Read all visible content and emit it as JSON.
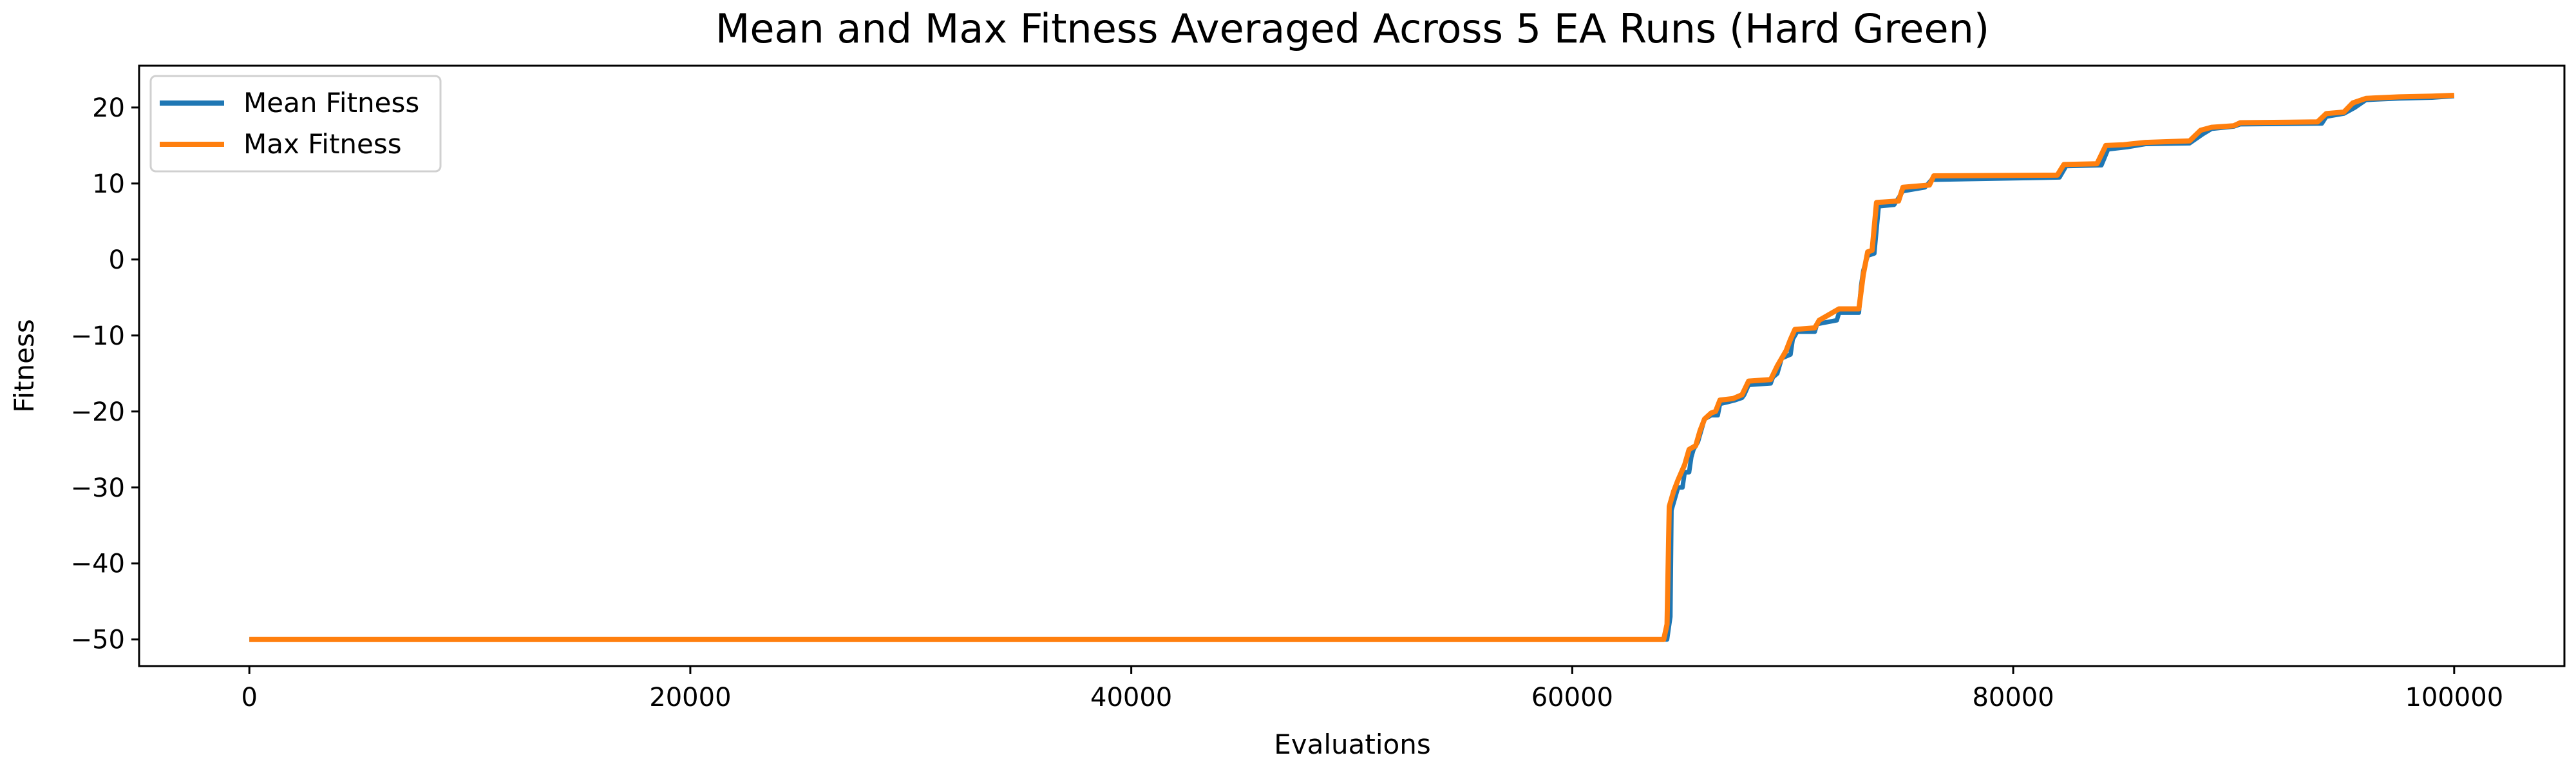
{
  "chart_data": {
    "type": "line",
    "title": "Mean and Max Fitness Averaged Across 5 EA Runs (Hard Green)",
    "xlabel": "Evaluations",
    "ylabel": "Fitness",
    "xlim": [
      -5000,
      105000
    ],
    "ylim": [
      -53.5,
      25.5
    ],
    "xticks": [
      0,
      20000,
      40000,
      60000,
      80000,
      100000
    ],
    "xtick_labels": [
      "0",
      "20000",
      "40000",
      "60000",
      "80000",
      "100000"
    ],
    "yticks": [
      -50,
      -40,
      -30,
      -20,
      -10,
      0,
      10,
      20
    ],
    "ytick_labels": [
      "−50",
      "−40",
      "−30",
      "−20",
      "−10",
      "0",
      "10",
      "20"
    ],
    "grid": false,
    "legend_position": "top-left",
    "series": [
      {
        "name": "Mean Fitness",
        "color": "#1f77b4",
        "points": [
          [
            0,
            -50
          ],
          [
            64300,
            -50
          ],
          [
            64450,
            -47
          ],
          [
            64500,
            -33
          ],
          [
            64700,
            -31
          ],
          [
            64800,
            -30
          ],
          [
            65000,
            -30
          ],
          [
            65100,
            -28
          ],
          [
            65300,
            -28
          ],
          [
            65400,
            -26
          ],
          [
            65500,
            -25
          ],
          [
            65700,
            -24
          ],
          [
            65800,
            -23
          ],
          [
            66000,
            -21
          ],
          [
            66300,
            -20.5
          ],
          [
            66600,
            -20.5
          ],
          [
            66700,
            -19
          ],
          [
            67000,
            -18.8
          ],
          [
            67400,
            -18.5
          ],
          [
            67700,
            -18.2
          ],
          [
            67800,
            -17.8
          ],
          [
            68000,
            -16.5
          ],
          [
            69000,
            -16.3
          ],
          [
            69100,
            -15.5
          ],
          [
            69300,
            -15
          ],
          [
            69500,
            -13
          ],
          [
            69900,
            -12.5
          ],
          [
            70000,
            -10.5
          ],
          [
            70200,
            -9.5
          ],
          [
            71000,
            -9.5
          ],
          [
            71100,
            -8.5
          ],
          [
            72000,
            -8
          ],
          [
            72100,
            -7
          ],
          [
            73000,
            -7
          ],
          [
            73100,
            -3.5
          ],
          [
            73200,
            -1.5
          ],
          [
            73400,
            0.5
          ],
          [
            73700,
            0.8
          ],
          [
            73900,
            7
          ],
          [
            74600,
            7.2
          ],
          [
            75000,
            9
          ],
          [
            76000,
            9.5
          ],
          [
            76300,
            10.5
          ],
          [
            82100,
            10.8
          ],
          [
            82400,
            12.3
          ],
          [
            84000,
            12.4
          ],
          [
            84300,
            14.5
          ],
          [
            85200,
            14.8
          ],
          [
            86000,
            15.2
          ],
          [
            88000,
            15.3
          ],
          [
            88600,
            16.5
          ],
          [
            89000,
            17.2
          ],
          [
            90000,
            17.5
          ],
          [
            90300,
            17.8
          ],
          [
            94000,
            17.9
          ],
          [
            94200,
            18.8
          ],
          [
            95000,
            19.2
          ],
          [
            95500,
            20
          ],
          [
            96000,
            21
          ],
          [
            97500,
            21.2
          ],
          [
            99000,
            21.3
          ],
          [
            100000,
            21.5
          ]
        ]
      },
      {
        "name": "Max Fitness",
        "color": "#ff7f0e",
        "points": [
          [
            0,
            -50
          ],
          [
            64150,
            -50
          ],
          [
            64300,
            -48
          ],
          [
            64400,
            -32.5
          ],
          [
            64600,
            -30.5
          ],
          [
            64800,
            -29
          ],
          [
            65100,
            -27
          ],
          [
            65300,
            -25
          ],
          [
            65600,
            -24.5
          ],
          [
            65800,
            -22.5
          ],
          [
            66000,
            -21
          ],
          [
            66300,
            -20.2
          ],
          [
            66500,
            -20
          ],
          [
            66700,
            -18.5
          ],
          [
            67300,
            -18.3
          ],
          [
            67700,
            -17.8
          ],
          [
            68000,
            -16
          ],
          [
            69000,
            -15.8
          ],
          [
            69300,
            -14
          ],
          [
            69700,
            -12
          ],
          [
            69900,
            -10.5
          ],
          [
            70100,
            -9.2
          ],
          [
            71000,
            -9
          ],
          [
            71200,
            -8
          ],
          [
            72100,
            -6.5
          ],
          [
            73000,
            -6.5
          ],
          [
            73200,
            -2
          ],
          [
            73400,
            1
          ],
          [
            73600,
            1.2
          ],
          [
            73800,
            7.5
          ],
          [
            74800,
            7.7
          ],
          [
            75000,
            9.5
          ],
          [
            76200,
            9.8
          ],
          [
            76400,
            11
          ],
          [
            82000,
            11.1
          ],
          [
            82300,
            12.5
          ],
          [
            83800,
            12.6
          ],
          [
            84200,
            15
          ],
          [
            85000,
            15.1
          ],
          [
            86000,
            15.4
          ],
          [
            88000,
            15.6
          ],
          [
            88500,
            17
          ],
          [
            89000,
            17.4
          ],
          [
            90000,
            17.6
          ],
          [
            90300,
            18
          ],
          [
            93800,
            18.1
          ],
          [
            94200,
            19.2
          ],
          [
            95000,
            19.4
          ],
          [
            95400,
            20.6
          ],
          [
            96000,
            21.2
          ],
          [
            97500,
            21.4
          ],
          [
            99000,
            21.5
          ],
          [
            100000,
            21.6
          ]
        ]
      }
    ]
  }
}
